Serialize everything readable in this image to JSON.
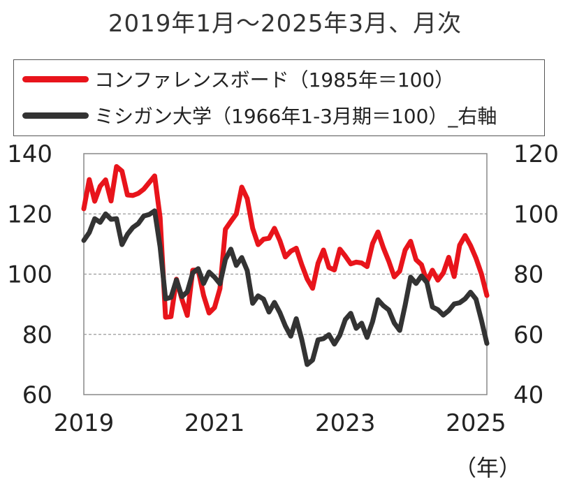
{
  "title": "2019年1月～2025年3月、月次",
  "x_unit": "（年）",
  "colors": {
    "conference_board": "#e8141b",
    "michigan": "#333333",
    "grid": "#9a9a9a"
  },
  "chart_data": {
    "type": "line",
    "title": "2019年1月～2025年3月、月次",
    "x_start": "2019-01",
    "x_end": "2025-03",
    "x_ticks": [
      "2019",
      "2021",
      "2023",
      "2025"
    ],
    "y_left": {
      "range": [
        60,
        140
      ],
      "ticks": [
        "60",
        "80",
        "100",
        "120",
        "140"
      ]
    },
    "y_right": {
      "range": [
        40,
        120
      ],
      "ticks": [
        "40",
        "60",
        "80",
        "100",
        "120"
      ]
    },
    "grid": "horizontal-dashed",
    "legend": "top",
    "series": [
      {
        "name": "コンファレンスボード（1985年＝100）",
        "axis": "left",
        "color": "#e8141b",
        "values": [
          121.7,
          131.4,
          124.2,
          129.2,
          131.3,
          124.3,
          135.7,
          134.2,
          126.3,
          126.1,
          126.8,
          128.2,
          130.4,
          132.6,
          118.8,
          85.7,
          85.9,
          98.3,
          91.7,
          86.3,
          101.3,
          101.4,
          92.9,
          87.1,
          88.9,
          95.2,
          114.9,
          117.5,
          120.0,
          128.9,
          125.1,
          115.2,
          109.8,
          111.6,
          111.9,
          115.2,
          111.1,
          105.7,
          107.6,
          108.6,
          103.2,
          98.4,
          95.3,
          103.6,
          108.0,
          102.2,
          101.4,
          108.3,
          106.0,
          103.4,
          104.0,
          103.7,
          102.5,
          110.1,
          114.0,
          108.7,
          104.3,
          99.1,
          101.0,
          108.0,
          110.9,
          104.8,
          103.1,
          97.5,
          101.3,
          98.0,
          100.4,
          105.6,
          99.2,
          109.6,
          112.8,
          109.5,
          105.3,
          100.1,
          92.9
        ]
      },
      {
        "name": "ミシガン大学（1966年1-3月期＝100）_右軸",
        "axis": "right",
        "color": "#333333",
        "values": [
          91.2,
          93.8,
          98.4,
          97.2,
          100.0,
          98.2,
          98.4,
          89.8,
          93.2,
          95.5,
          96.8,
          99.3,
          99.8,
          101.0,
          89.1,
          71.8,
          72.3,
          78.1,
          72.5,
          74.1,
          80.4,
          81.8,
          76.9,
          80.7,
          79.0,
          76.8,
          84.9,
          88.3,
          82.9,
          85.5,
          81.2,
          70.3,
          72.8,
          71.7,
          67.4,
          70.6,
          67.2,
          62.8,
          59.4,
          65.2,
          58.4,
          50.0,
          51.5,
          58.2,
          58.6,
          59.9,
          56.8,
          59.7,
          64.9,
          67.0,
          62.0,
          63.7,
          59.0,
          64.2,
          71.5,
          69.5,
          68.1,
          63.8,
          61.3,
          69.7,
          79.0,
          76.9,
          79.4,
          77.2,
          69.1,
          68.2,
          66.4,
          67.9,
          70.1,
          70.5,
          71.8,
          74.0,
          71.7,
          64.7,
          57.0
        ]
      }
    ]
  }
}
